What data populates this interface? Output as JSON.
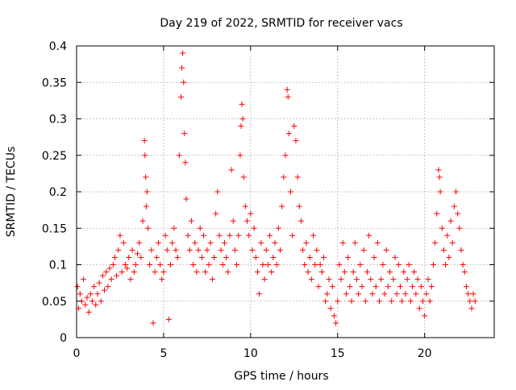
{
  "chart_data": {
    "type": "scatter",
    "title": "Day 219 of 2022, SRMTID for receiver vacs",
    "xlabel": "GPS time / hours",
    "ylabel": "SRMTID / TECUs",
    "xlim": [
      0,
      24
    ],
    "ylim": [
      0,
      0.4
    ],
    "grid": true,
    "legend": "none",
    "marker": "plus",
    "marker_color": "#ff0000",
    "x_ticks": [
      0,
      5,
      10,
      15,
      20
    ],
    "y_ticks": [
      0,
      0.05,
      0.1,
      0.15,
      0.2,
      0.25,
      0.3,
      0.35,
      0.4
    ],
    "x_tick_labels": [
      "0",
      "5",
      "10",
      "15",
      "20"
    ],
    "y_tick_labels": [
      "0",
      "0.05",
      "0.1",
      "0.15",
      "0.2",
      "0.25",
      "0.3",
      "0.35",
      "0.4"
    ],
    "series": [
      {
        "name": "SRMTID",
        "points": [
          [
            0.05,
            0.07
          ],
          [
            0.12,
            0.04
          ],
          [
            0.2,
            0.06
          ],
          [
            0.3,
            0.05
          ],
          [
            0.4,
            0.08
          ],
          [
            0.5,
            0.045
          ],
          [
            0.6,
            0.055
          ],
          [
            0.7,
            0.035
          ],
          [
            0.8,
            0.06
          ],
          [
            0.9,
            0.05
          ],
          [
            1.0,
            0.07
          ],
          [
            1.1,
            0.045
          ],
          [
            1.2,
            0.06
          ],
          [
            1.3,
            0.075
          ],
          [
            1.4,
            0.05
          ],
          [
            1.5,
            0.085
          ],
          [
            1.6,
            0.065
          ],
          [
            1.7,
            0.09
          ],
          [
            1.8,
            0.07
          ],
          [
            1.9,
            0.095
          ],
          [
            2.0,
            0.08
          ],
          [
            2.1,
            0.1
          ],
          [
            2.2,
            0.11
          ],
          [
            2.3,
            0.085
          ],
          [
            2.4,
            0.12
          ],
          [
            2.5,
            0.14
          ],
          [
            2.6,
            0.09
          ],
          [
            2.7,
            0.13
          ],
          [
            2.8,
            0.1
          ],
          [
            2.9,
            0.095
          ],
          [
            3.0,
            0.11
          ],
          [
            3.1,
            0.08
          ],
          [
            3.2,
            0.12
          ],
          [
            3.3,
            0.09
          ],
          [
            3.4,
            0.1
          ],
          [
            3.5,
            0.115
          ],
          [
            3.6,
            0.13
          ],
          [
            3.7,
            0.11
          ],
          [
            3.8,
            0.16
          ],
          [
            3.9,
            0.27
          ],
          [
            3.93,
            0.25
          ],
          [
            3.97,
            0.22
          ],
          [
            4.0,
            0.18
          ],
          [
            4.05,
            0.2
          ],
          [
            4.1,
            0.15
          ],
          [
            4.2,
            0.1
          ],
          [
            4.3,
            0.12
          ],
          [
            4.4,
            0.02
          ],
          [
            4.5,
            0.09
          ],
          [
            4.6,
            0.11
          ],
          [
            4.7,
            0.13
          ],
          [
            4.8,
            0.1
          ],
          [
            4.9,
            0.08
          ],
          [
            5.0,
            0.09
          ],
          [
            5.1,
            0.14
          ],
          [
            5.2,
            0.12
          ],
          [
            5.3,
            0.025
          ],
          [
            5.4,
            0.1
          ],
          [
            5.5,
            0.13
          ],
          [
            5.6,
            0.15
          ],
          [
            5.7,
            0.12
          ],
          [
            5.8,
            0.11
          ],
          [
            5.9,
            0.25
          ],
          [
            6.0,
            0.33
          ],
          [
            6.05,
            0.37
          ],
          [
            6.1,
            0.39
          ],
          [
            6.15,
            0.35
          ],
          [
            6.2,
            0.28
          ],
          [
            6.25,
            0.24
          ],
          [
            6.3,
            0.19
          ],
          [
            6.4,
            0.14
          ],
          [
            6.5,
            0.12
          ],
          [
            6.6,
            0.16
          ],
          [
            6.7,
            0.1
          ],
          [
            6.8,
            0.13
          ],
          [
            6.9,
            0.09
          ],
          [
            7.0,
            0.12
          ],
          [
            7.1,
            0.15
          ],
          [
            7.2,
            0.11
          ],
          [
            7.3,
            0.14
          ],
          [
            7.4,
            0.09
          ],
          [
            7.5,
            0.12
          ],
          [
            7.6,
            0.1
          ],
          [
            7.7,
            0.13
          ],
          [
            7.8,
            0.08
          ],
          [
            7.9,
            0.11
          ],
          [
            8.0,
            0.17
          ],
          [
            8.1,
            0.2
          ],
          [
            8.2,
            0.14
          ],
          [
            8.3,
            0.12
          ],
          [
            8.4,
            0.1
          ],
          [
            8.5,
            0.13
          ],
          [
            8.6,
            0.11
          ],
          [
            8.7,
            0.09
          ],
          [
            8.8,
            0.14
          ],
          [
            8.9,
            0.23
          ],
          [
            9.0,
            0.16
          ],
          [
            9.1,
            0.12
          ],
          [
            9.2,
            0.1
          ],
          [
            9.3,
            0.14
          ],
          [
            9.4,
            0.25
          ],
          [
            9.45,
            0.29
          ],
          [
            9.5,
            0.32
          ],
          [
            9.55,
            0.3
          ],
          [
            9.6,
            0.22
          ],
          [
            9.7,
            0.18
          ],
          [
            9.8,
            0.16
          ],
          [
            9.9,
            0.14
          ],
          [
            10.0,
            0.17
          ],
          [
            10.1,
            0.12
          ],
          [
            10.2,
            0.15
          ],
          [
            10.3,
            0.11
          ],
          [
            10.4,
            0.09
          ],
          [
            10.5,
            0.06
          ],
          [
            10.6,
            0.13
          ],
          [
            10.7,
            0.1
          ],
          [
            10.8,
            0.08
          ],
          [
            10.9,
            0.12
          ],
          [
            11.0,
            0.1
          ],
          [
            11.1,
            0.14
          ],
          [
            11.2,
            0.09
          ],
          [
            11.3,
            0.11
          ],
          [
            11.4,
            0.13
          ],
          [
            11.5,
            0.1
          ],
          [
            11.6,
            0.15
          ],
          [
            11.7,
            0.12
          ],
          [
            11.8,
            0.18
          ],
          [
            11.9,
            0.22
          ],
          [
            12.0,
            0.25
          ],
          [
            12.1,
            0.34
          ],
          [
            12.15,
            0.33
          ],
          [
            12.2,
            0.28
          ],
          [
            12.3,
            0.2
          ],
          [
            12.4,
            0.14
          ],
          [
            12.5,
            0.29
          ],
          [
            12.6,
            0.27
          ],
          [
            12.7,
            0.22
          ],
          [
            12.8,
            0.18
          ],
          [
            12.9,
            0.16
          ],
          [
            13.0,
            0.12
          ],
          [
            13.1,
            0.1
          ],
          [
            13.2,
            0.13
          ],
          [
            13.3,
            0.09
          ],
          [
            13.4,
            0.11
          ],
          [
            13.5,
            0.08
          ],
          [
            13.6,
            0.14
          ],
          [
            13.7,
            0.1
          ],
          [
            13.8,
            0.12
          ],
          [
            13.9,
            0.07
          ],
          [
            14.0,
            0.1
          ],
          [
            14.1,
            0.09
          ],
          [
            14.2,
            0.11
          ],
          [
            14.3,
            0.05
          ],
          [
            14.4,
            0.06
          ],
          [
            14.5,
            0.08
          ],
          [
            14.6,
            0.04
          ],
          [
            14.7,
            0.07
          ],
          [
            14.8,
            0.03
          ],
          [
            14.9,
            0.02
          ],
          [
            15.0,
            0.05
          ],
          [
            15.1,
            0.1
          ],
          [
            15.2,
            0.08
          ],
          [
            15.3,
            0.13
          ],
          [
            15.4,
            0.09
          ],
          [
            15.5,
            0.06
          ],
          [
            15.6,
            0.11
          ],
          [
            15.7,
            0.07
          ],
          [
            15.8,
            0.05
          ],
          [
            15.9,
            0.09
          ],
          [
            16.0,
            0.13
          ],
          [
            16.1,
            0.08
          ],
          [
            16.2,
            0.06
          ],
          [
            16.3,
            0.1
          ],
          [
            16.4,
            0.07
          ],
          [
            16.5,
            0.12
          ],
          [
            16.6,
            0.05
          ],
          [
            16.7,
            0.09
          ],
          [
            16.8,
            0.14
          ],
          [
            16.9,
            0.08
          ],
          [
            17.0,
            0.06
          ],
          [
            17.1,
            0.11
          ],
          [
            17.2,
            0.07
          ],
          [
            17.3,
            0.13
          ],
          [
            17.4,
            0.05
          ],
          [
            17.5,
            0.08
          ],
          [
            17.6,
            0.1
          ],
          [
            17.7,
            0.06
          ],
          [
            17.8,
            0.12
          ],
          [
            17.9,
            0.07
          ],
          [
            18.0,
            0.09
          ],
          [
            18.1,
            0.05
          ],
          [
            18.2,
            0.08
          ],
          [
            18.3,
            0.11
          ],
          [
            18.4,
            0.06
          ],
          [
            18.5,
            0.1
          ],
          [
            18.6,
            0.07
          ],
          [
            18.7,
            0.05
          ],
          [
            18.8,
            0.09
          ],
          [
            18.9,
            0.06
          ],
          [
            19.0,
            0.08
          ],
          [
            19.1,
            0.1
          ],
          [
            19.2,
            0.05
          ],
          [
            19.3,
            0.07
          ],
          [
            19.4,
            0.09
          ],
          [
            19.5,
            0.06
          ],
          [
            19.6,
            0.08
          ],
          [
            19.7,
            0.04
          ],
          [
            19.8,
            0.07
          ],
          [
            19.9,
            0.05
          ],
          [
            20.0,
            0.03
          ],
          [
            20.1,
            0.06
          ],
          [
            20.2,
            0.08
          ],
          [
            20.3,
            0.05
          ],
          [
            20.4,
            0.07
          ],
          [
            20.5,
            0.1
          ],
          [
            20.6,
            0.13
          ],
          [
            20.7,
            0.17
          ],
          [
            20.8,
            0.23
          ],
          [
            20.85,
            0.22
          ],
          [
            20.9,
            0.2
          ],
          [
            21.0,
            0.15
          ],
          [
            21.1,
            0.12
          ],
          [
            21.2,
            0.1
          ],
          [
            21.3,
            0.14
          ],
          [
            21.4,
            0.11
          ],
          [
            21.5,
            0.16
          ],
          [
            21.6,
            0.13
          ],
          [
            21.7,
            0.18
          ],
          [
            21.8,
            0.2
          ],
          [
            21.9,
            0.17
          ],
          [
            22.0,
            0.15
          ],
          [
            22.1,
            0.12
          ],
          [
            22.2,
            0.1
          ],
          [
            22.3,
            0.09
          ],
          [
            22.4,
            0.07
          ],
          [
            22.5,
            0.06
          ],
          [
            22.6,
            0.05
          ],
          [
            22.7,
            0.04
          ],
          [
            22.8,
            0.06
          ],
          [
            22.9,
            0.05
          ]
        ]
      }
    ]
  }
}
